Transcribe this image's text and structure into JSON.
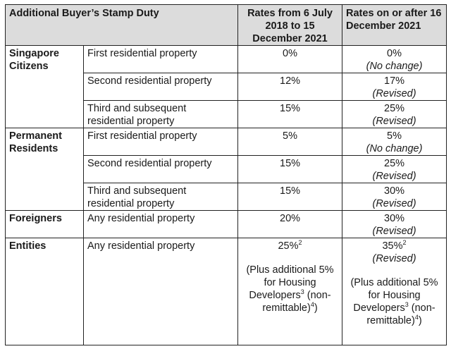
{
  "header": {
    "col1": "Additional Buyer’s Stamp Duty",
    "col2": "Rates from 6 July 2018 to 15 December 2021",
    "col3": "Rates on or after 16 December 2021"
  },
  "groups": [
    {
      "category": "Singapore Citizens",
      "rows": [
        {
          "property": "First residential property",
          "old": "0%",
          "new": "0%",
          "note": "(No change)"
        },
        {
          "property": "Second residential property",
          "old": "12%",
          "new": "17%",
          "note": "(Revised)"
        },
        {
          "property": "Third and subsequent residential property",
          "old": "15%",
          "new": "25%",
          "note": "(Revised)"
        }
      ]
    },
    {
      "category": "Permanent Residents",
      "rows": [
        {
          "property": "First residential property",
          "old": "5%",
          "new": "5%",
          "note": "(No change)"
        },
        {
          "property": "Second residential property",
          "old": "15%",
          "new": "25%",
          "note": "(Revised)"
        },
        {
          "property": "Third and subsequent residential property",
          "old": "15%",
          "new": "30%",
          "note": "(Revised)"
        }
      ]
    },
    {
      "category": "Foreigners",
      "rows": [
        {
          "property": "Any residential property",
          "old": "20%",
          "new": "30%",
          "note": "(Revised)"
        }
      ]
    }
  ],
  "entities": {
    "category": "Entities",
    "property": "Any residential property",
    "old": "25%",
    "old_sup": "2",
    "new": "35%",
    "new_sup": "2",
    "note": "(Revised)",
    "plus_a": "(Plus additional 5% for Housing Developers",
    "plus_sup": "3",
    "plus_b": " (non-remittable)",
    "plus_sup2": "4",
    "plus_c": ")"
  },
  "colors": {
    "header_bg": "#dcdcdc",
    "border": "#222222",
    "text": "#1a1a1a"
  }
}
